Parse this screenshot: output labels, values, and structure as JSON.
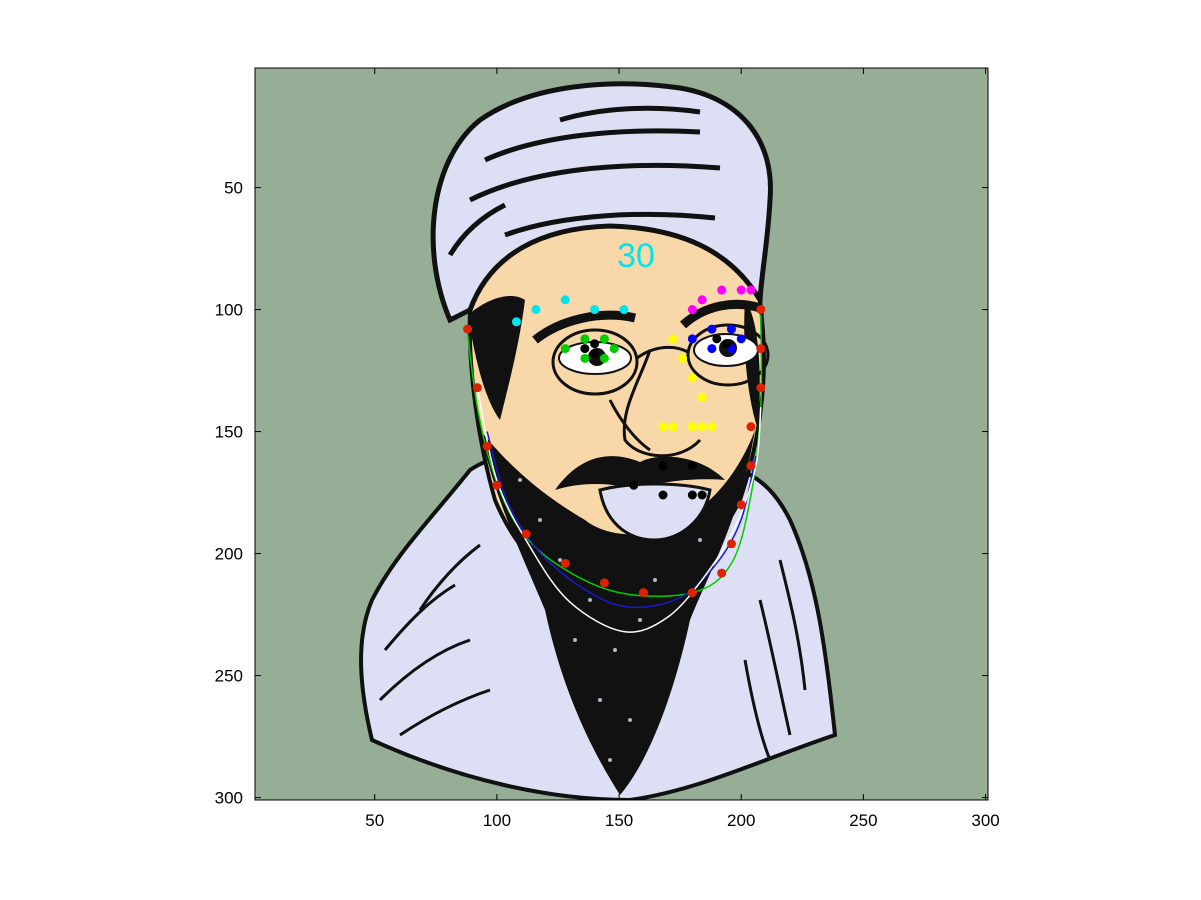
{
  "annotation": {
    "text": "30",
    "color": "#00e5ee"
  },
  "axes": {
    "xlim": [
      1,
      301
    ],
    "ylim": [
      1,
      301
    ],
    "y_direction": "down",
    "x_ticks": [
      50,
      100,
      150,
      200,
      250,
      300
    ],
    "y_ticks": [
      50,
      100,
      150,
      200,
      250,
      300
    ],
    "x_tick_labels": [
      "50",
      "100",
      "150",
      "200",
      "250",
      "300"
    ],
    "y_tick_labels": [
      "50",
      "100",
      "150",
      "200",
      "250",
      "300"
    ]
  },
  "colors": {
    "background": "#96ad96",
    "skin": "#f8d8a8",
    "cloth": "#dde0f4",
    "ink": "#111111"
  },
  "landmarks": {
    "right_brow": {
      "color": "#00e5ee",
      "points": [
        [
          108,
          105
        ],
        [
          116,
          100
        ],
        [
          128,
          96
        ],
        [
          140,
          100
        ],
        [
          152,
          100
        ]
      ]
    },
    "left_brow": {
      "color": "#ff00ff",
      "points": [
        [
          180,
          100
        ],
        [
          184,
          96
        ],
        [
          192,
          92
        ],
        [
          200,
          92
        ],
        [
          204,
          92
        ]
      ]
    },
    "right_eye": {
      "color": "#00cc00",
      "points": [
        [
          128,
          116
        ],
        [
          136,
          112
        ],
        [
          144,
          112
        ],
        [
          148,
          116
        ],
        [
          144,
          120
        ],
        [
          136,
          120
        ]
      ]
    },
    "right_eye_dark": {
      "color": "#000000",
      "points": [
        [
          136,
          116
        ],
        [
          140,
          114
        ],
        [
          140,
          118
        ]
      ]
    },
    "left_eye": {
      "color": "#0000ff",
      "points": [
        [
          180,
          112
        ],
        [
          188,
          108
        ],
        [
          196,
          108
        ],
        [
          200,
          112
        ],
        [
          196,
          116
        ],
        [
          188,
          116
        ]
      ]
    },
    "left_eye_dark": {
      "color": "#000000",
      "points": [
        [
          190,
          112
        ],
        [
          194,
          114
        ]
      ]
    },
    "nose": {
      "color": "#ffff00",
      "points": [
        [
          172,
          112
        ],
        [
          176,
          120
        ],
        [
          180,
          128
        ],
        [
          184,
          136
        ],
        [
          168,
          148
        ],
        [
          172,
          148
        ],
        [
          180,
          148
        ],
        [
          184,
          148
        ],
        [
          188,
          148
        ]
      ]
    },
    "mouth": {
      "color": "#000000",
      "points": [
        [
          168,
          164
        ],
        [
          180,
          164
        ],
        [
          168,
          176
        ],
        [
          180,
          176
        ],
        [
          184,
          176
        ],
        [
          156,
          172
        ]
      ]
    },
    "jaw": {
      "color": "#dd2200",
      "points": [
        [
          88,
          108
        ],
        [
          92,
          132
        ],
        [
          96,
          156
        ],
        [
          100,
          172
        ],
        [
          112,
          192
        ],
        [
          128,
          204
        ],
        [
          144,
          212
        ],
        [
          160,
          216
        ],
        [
          180,
          216
        ],
        [
          192,
          208
        ],
        [
          196,
          196
        ],
        [
          200,
          180
        ],
        [
          204,
          164
        ],
        [
          204,
          148
        ],
        [
          208,
          132
        ],
        [
          208,
          116
        ],
        [
          208,
          100
        ]
      ]
    }
  },
  "curves": {
    "green": {
      "color": "#00cc00",
      "points": [
        [
          88,
          110
        ],
        [
          92,
          140
        ],
        [
          98,
          165
        ],
        [
          108,
          188
        ],
        [
          124,
          204
        ],
        [
          150,
          216
        ],
        [
          180,
          216
        ],
        [
          196,
          204
        ],
        [
          204,
          176
        ],
        [
          208,
          140
        ],
        [
          208,
          102
        ]
      ]
    },
    "blue": {
      "color": "#1a1acc",
      "points": [
        [
          96,
          150
        ],
        [
          104,
          178
        ],
        [
          118,
          200
        ],
        [
          138,
          216
        ],
        [
          155,
          222
        ],
        [
          175,
          218
        ],
        [
          190,
          204
        ],
        [
          200,
          186
        ],
        [
          206,
          160
        ]
      ]
    },
    "white": {
      "color": "#ffffff",
      "points": [
        [
          92,
          132
        ],
        [
          100,
          170
        ],
        [
          114,
          198
        ],
        [
          130,
          220
        ],
        [
          152,
          232
        ],
        [
          170,
          226
        ],
        [
          186,
          208
        ],
        [
          198,
          188
        ],
        [
          206,
          164
        ],
        [
          208,
          140
        ]
      ]
    }
  }
}
